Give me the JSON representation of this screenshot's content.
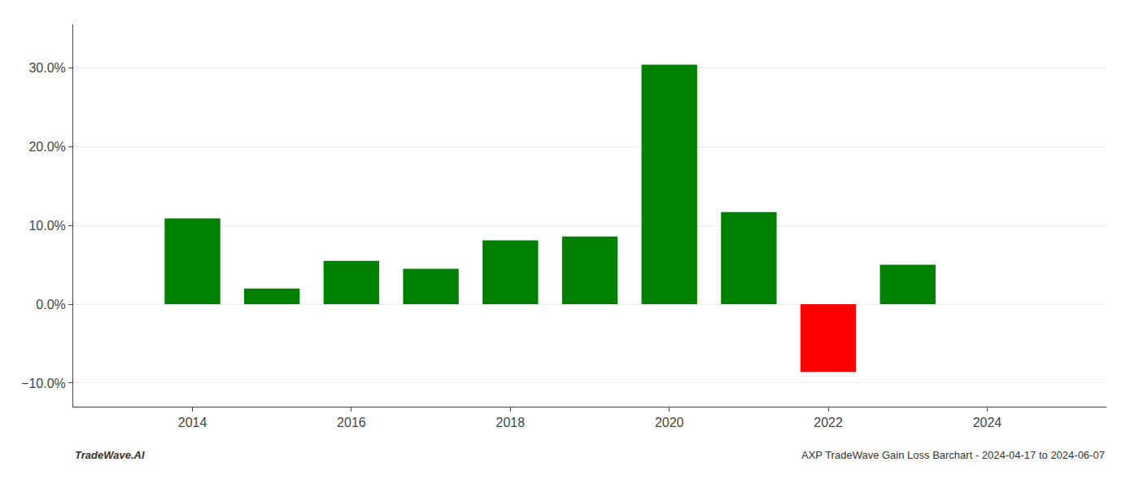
{
  "chart_data": {
    "type": "bar",
    "x": [
      2014,
      2015,
      2016,
      2017,
      2018,
      2019,
      2020,
      2021,
      2022,
      2023
    ],
    "values": [
      0.109,
      0.02,
      0.055,
      0.045,
      0.081,
      0.086,
      0.304,
      0.117,
      -0.086,
      0.05
    ],
    "colors": [
      "#008000",
      "#008000",
      "#008000",
      "#008000",
      "#008000",
      "#008000",
      "#008000",
      "#008000",
      "#ff0000",
      "#008000"
    ],
    "xlim": [
      2012.5,
      2025.5
    ],
    "xticks": [
      2014,
      2016,
      2018,
      2020,
      2022,
      2024
    ],
    "ylim": [
      -0.13,
      0.355
    ],
    "yticks": [
      {
        "value": -0.1,
        "label": "−10.0%"
      },
      {
        "value": 0.0,
        "label": "0.0%"
      },
      {
        "value": 0.1,
        "label": "10.0%"
      },
      {
        "value": 0.2,
        "label": "20.0%"
      },
      {
        "value": 0.3,
        "label": "30.0%"
      }
    ],
    "grid": true,
    "annotations": [
      "TradeWave.AI",
      "AXP TradeWave Gain Loss Barchart - 2024-04-17 to 2024-06-07"
    ]
  }
}
